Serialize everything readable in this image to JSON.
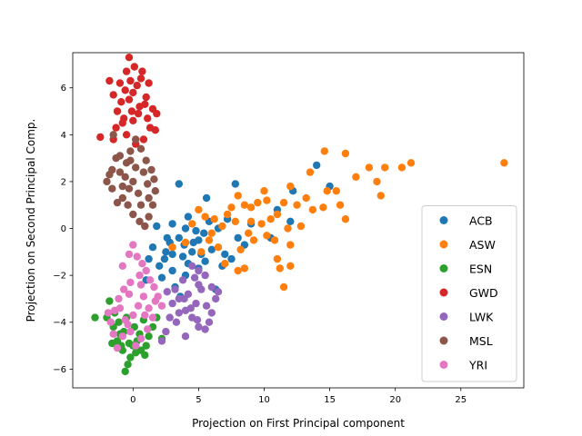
{
  "chart_data": {
    "type": "scatter",
    "title": "",
    "xlabel": "Projection on First Principal component",
    "ylabel": "Projection on Second Principal Comp.",
    "xlim": [
      -4.6,
      29.8
    ],
    "ylim": [
      -6.8,
      7.5
    ],
    "xticks": [
      0,
      5,
      10,
      15,
      20,
      25
    ],
    "yticks": [
      -6,
      -4,
      -2,
      0,
      2,
      4,
      6
    ],
    "grid": false,
    "legend_position": "lower-right",
    "series": [
      {
        "name": "ACB",
        "color": "#1f77b4",
        "points": [
          [
            3.5,
            1.9
          ],
          [
            5.6,
            1.3
          ],
          [
            7.8,
            1.9
          ],
          [
            3.0,
            0.2
          ],
          [
            4.0,
            0.0
          ],
          [
            5.0,
            -0.5
          ],
          [
            6.0,
            -0.9
          ],
          [
            7.0,
            -1.1
          ],
          [
            2.5,
            -1.0
          ],
          [
            1.8,
            0.1
          ],
          [
            1.5,
            -0.8
          ],
          [
            1.2,
            -1.3
          ],
          [
            2.0,
            -1.6
          ],
          [
            3.0,
            -1.8
          ],
          [
            4.0,
            -2.0
          ],
          [
            5.0,
            -1.7
          ],
          [
            6.3,
            -2.6
          ],
          [
            7.5,
            -1.3
          ],
          [
            8.5,
            -0.7
          ],
          [
            9.0,
            0.2
          ],
          [
            3.5,
            -0.4
          ],
          [
            4.5,
            -1.0
          ],
          [
            5.5,
            -1.4
          ],
          [
            2.8,
            -0.6
          ],
          [
            3.8,
            -1.2
          ],
          [
            4.8,
            -0.1
          ],
          [
            5.8,
            0.3
          ],
          [
            6.5,
            0.0
          ],
          [
            7.2,
            0.4
          ],
          [
            8.0,
            -0.4
          ],
          [
            2.2,
            -2.1
          ],
          [
            3.2,
            -2.5
          ],
          [
            4.2,
            -1.5
          ],
          [
            3.0,
            -1.1
          ],
          [
            4.6,
            -0.6
          ],
          [
            5.2,
            -1.1
          ],
          [
            6.8,
            -1.6
          ],
          [
            2.6,
            -0.4
          ],
          [
            1.0,
            -2.2
          ],
          [
            3.6,
            -2.9
          ],
          [
            12.2,
            1.6
          ],
          [
            12.0,
            0.3
          ],
          [
            14.0,
            2.7
          ],
          [
            15.0,
            1.8
          ],
          [
            11.0,
            0.8
          ],
          [
            10.5,
            -0.4
          ],
          [
            4.2,
            0.5
          ],
          [
            3.9,
            -0.7
          ],
          [
            2.4,
            -1.3
          ],
          [
            5.4,
            -0.2
          ]
        ]
      },
      {
        "name": "ASW",
        "color": "#ff7f0e",
        "points": [
          [
            14.6,
            3.3
          ],
          [
            16.2,
            3.2
          ],
          [
            28.3,
            2.8
          ],
          [
            21.2,
            2.8
          ],
          [
            20.5,
            2.6
          ],
          [
            19.2,
            2.6
          ],
          [
            18.0,
            2.6
          ],
          [
            18.6,
            2.0
          ],
          [
            18.9,
            1.4
          ],
          [
            16.2,
            0.4
          ],
          [
            15.8,
            1.0
          ],
          [
            15.5,
            1.6
          ],
          [
            14.5,
            0.9
          ],
          [
            13.7,
            0.8
          ],
          [
            13.2,
            1.3
          ],
          [
            12.8,
            0.1
          ],
          [
            12.0,
            1.8
          ],
          [
            11.5,
            1.1
          ],
          [
            11.0,
            0.6
          ],
          [
            10.5,
            0.4
          ],
          [
            10.0,
            1.6
          ],
          [
            9.5,
            1.1
          ],
          [
            9.0,
            0.9
          ],
          [
            8.5,
            1.0
          ],
          [
            8.0,
            1.4
          ],
          [
            7.5,
            0.9
          ],
          [
            11.5,
            -2.5
          ],
          [
            12.0,
            -1.6
          ],
          [
            11.2,
            -1.7
          ],
          [
            11.0,
            -1.3
          ],
          [
            10.8,
            -0.5
          ],
          [
            12.0,
            -0.7
          ],
          [
            8.5,
            -1.7
          ],
          [
            8.0,
            -1.8
          ],
          [
            7.0,
            -1.5
          ],
          [
            6.5,
            -0.8
          ],
          [
            6.0,
            -0.2
          ],
          [
            5.5,
            0.5
          ],
          [
            5.0,
            0.8
          ],
          [
            4.5,
            0.2
          ],
          [
            7.2,
            0.6
          ],
          [
            9.2,
            -0.5
          ],
          [
            10.2,
            -0.3
          ],
          [
            11.8,
            0.0
          ],
          [
            9.8,
            0.2
          ],
          [
            8.8,
            -0.2
          ],
          [
            7.8,
            0.3
          ],
          [
            6.8,
            0.1
          ],
          [
            5.8,
            -0.5
          ],
          [
            13.5,
            2.4
          ],
          [
            17.0,
            2.2
          ],
          [
            14.8,
            1.6
          ],
          [
            12.5,
            1.0
          ],
          [
            10.2,
            1.2
          ],
          [
            9.0,
            0.3
          ],
          [
            4.0,
            -0.6
          ],
          [
            3.0,
            -0.8
          ],
          [
            5.2,
            -1.0
          ],
          [
            6.2,
            0.4
          ],
          [
            8.2,
            -0.9
          ]
        ]
      },
      {
        "name": "ESN",
        "color": "#2ca02c",
        "points": [
          [
            -2.9,
            -3.8
          ],
          [
            -2.0,
            -3.8
          ],
          [
            -1.8,
            -3.1
          ],
          [
            -1.5,
            -4.2
          ],
          [
            -1.2,
            -4.8
          ],
          [
            -1.0,
            -4.5
          ],
          [
            -0.8,
            -5.2
          ],
          [
            -0.6,
            -6.1
          ],
          [
            -0.4,
            -5.8
          ],
          [
            -0.2,
            -5.5
          ],
          [
            0.0,
            -5.0
          ],
          [
            0.3,
            -4.8
          ],
          [
            0.6,
            -5.2
          ],
          [
            0.9,
            -5.4
          ],
          [
            1.2,
            -4.6
          ],
          [
            1.5,
            -4.2
          ],
          [
            1.8,
            -3.8
          ],
          [
            2.2,
            -4.7
          ],
          [
            -1.4,
            -3.6
          ],
          [
            -1.1,
            -4.0
          ],
          [
            -0.7,
            -4.4
          ],
          [
            -0.3,
            -4.9
          ],
          [
            0.1,
            -4.2
          ],
          [
            0.5,
            -4.5
          ],
          [
            0.8,
            -3.9
          ],
          [
            -1.6,
            -4.9
          ],
          [
            -0.9,
            -5.0
          ],
          [
            -0.5,
            -3.8
          ],
          [
            0.2,
            -5.3
          ],
          [
            1.0,
            -5.0
          ]
        ]
      },
      {
        "name": "GWD",
        "color": "#d62728",
        "points": [
          [
            -0.3,
            7.3
          ],
          [
            -0.5,
            6.7
          ],
          [
            0.1,
            6.9
          ],
          [
            0.7,
            6.7
          ],
          [
            1.2,
            6.2
          ],
          [
            -1.0,
            6.2
          ],
          [
            -1.8,
            6.3
          ],
          [
            -1.5,
            5.7
          ],
          [
            -1.2,
            5.0
          ],
          [
            -0.8,
            4.5
          ],
          [
            -0.5,
            4.0
          ],
          [
            0.0,
            4.6
          ],
          [
            0.5,
            5.2
          ],
          [
            1.0,
            5.6
          ],
          [
            1.5,
            5.1
          ],
          [
            1.8,
            4.9
          ],
          [
            1.3,
            4.3
          ],
          [
            0.8,
            3.8
          ],
          [
            0.2,
            3.6
          ],
          [
            -0.3,
            5.5
          ],
          [
            0.3,
            6.1
          ],
          [
            -0.6,
            5.9
          ],
          [
            0.6,
            6.4
          ],
          [
            -1.3,
            4.3
          ],
          [
            -2.5,
            3.9
          ],
          [
            -1.5,
            3.8
          ],
          [
            1.7,
            4.2
          ],
          [
            -0.1,
            5.0
          ],
          [
            0.4,
            4.9
          ],
          [
            -0.9,
            5.4
          ],
          [
            0.9,
            5.3
          ],
          [
            -0.2,
            6.3
          ],
          [
            1.1,
            4.7
          ],
          [
            -0.7,
            4.7
          ],
          [
            0.0,
            5.8
          ]
        ]
      },
      {
        "name": "LWK",
        "color": "#9467bd",
        "points": [
          [
            4.5,
            -1.6
          ],
          [
            5.0,
            -1.8
          ],
          [
            5.5,
            -2.0
          ],
          [
            6.0,
            -2.5
          ],
          [
            6.3,
            -3.0
          ],
          [
            6.0,
            -3.6
          ],
          [
            5.8,
            -4.0
          ],
          [
            5.5,
            -4.3
          ],
          [
            5.0,
            -4.2
          ],
          [
            4.5,
            -3.8
          ],
          [
            4.0,
            -3.5
          ],
          [
            3.5,
            -3.0
          ],
          [
            3.2,
            -2.6
          ],
          [
            3.0,
            -3.2
          ],
          [
            2.8,
            -3.8
          ],
          [
            2.5,
            -4.4
          ],
          [
            2.2,
            -4.8
          ],
          [
            3.8,
            -2.2
          ],
          [
            4.2,
            -2.8
          ],
          [
            4.8,
            -3.2
          ],
          [
            5.2,
            -2.6
          ],
          [
            4.0,
            -4.6
          ],
          [
            3.5,
            -3.6
          ],
          [
            6.5,
            -2.7
          ],
          [
            5.0,
            -2.4
          ],
          [
            4.4,
            -3.4
          ],
          [
            3.3,
            -4.0
          ],
          [
            2.6,
            -2.7
          ],
          [
            4.7,
            -2.1
          ],
          [
            5.6,
            -3.3
          ],
          [
            3.9,
            -3.0
          ],
          [
            4.9,
            -3.9
          ]
        ]
      },
      {
        "name": "MSL",
        "color": "#8c564b",
        "points": [
          [
            -2.0,
            2.0
          ],
          [
            -1.6,
            2.5
          ],
          [
            -1.3,
            3.0
          ],
          [
            -1.0,
            3.1
          ],
          [
            -0.5,
            2.8
          ],
          [
            -0.2,
            3.3
          ],
          [
            0.2,
            3.8
          ],
          [
            0.6,
            3.4
          ],
          [
            1.0,
            2.9
          ],
          [
            1.4,
            2.5
          ],
          [
            1.6,
            2.1
          ],
          [
            1.7,
            1.6
          ],
          [
            1.5,
            1.0
          ],
          [
            1.2,
            0.5
          ],
          [
            0.9,
            0.1
          ],
          [
            0.5,
            0.3
          ],
          [
            0.0,
            0.6
          ],
          [
            -0.4,
            1.0
          ],
          [
            -0.8,
            1.3
          ],
          [
            -1.2,
            1.1
          ],
          [
            -1.6,
            1.7
          ],
          [
            -1.8,
            2.3
          ],
          [
            -1.5,
            4.0
          ],
          [
            0.0,
            2.0
          ],
          [
            0.4,
            1.5
          ],
          [
            -0.6,
            2.2
          ],
          [
            0.8,
            2.4
          ],
          [
            -0.3,
            1.7
          ],
          [
            1.1,
            1.9
          ],
          [
            0.2,
            2.6
          ],
          [
            -1.0,
            2.4
          ],
          [
            -0.2,
            2.9
          ],
          [
            0.6,
            1.0
          ],
          [
            1.2,
            1.3
          ],
          [
            -0.8,
            1.8
          ]
        ]
      },
      {
        "name": "YRI",
        "color": "#e377c2",
        "points": [
          [
            0.0,
            -0.7
          ],
          [
            -0.3,
            -1.1
          ],
          [
            -0.8,
            -1.6
          ],
          [
            0.3,
            -1.2
          ],
          [
            0.7,
            -1.5
          ],
          [
            1.0,
            -1.8
          ],
          [
            1.3,
            -2.2
          ],
          [
            1.6,
            -2.5
          ],
          [
            1.9,
            -2.9
          ],
          [
            2.2,
            -3.3
          ],
          [
            0.5,
            -2.0
          ],
          [
            -0.2,
            -2.3
          ],
          [
            -0.7,
            -2.6
          ],
          [
            -1.1,
            -3.0
          ],
          [
            -1.4,
            -3.5
          ],
          [
            -1.7,
            -4.0
          ],
          [
            -1.5,
            -4.5
          ],
          [
            -1.2,
            -5.1
          ],
          [
            -0.8,
            -4.6
          ],
          [
            -0.4,
            -4.1
          ],
          [
            0.0,
            -3.7
          ],
          [
            0.4,
            -3.3
          ],
          [
            0.8,
            -2.9
          ],
          [
            1.2,
            -3.4
          ],
          [
            1.5,
            -3.8
          ],
          [
            1.1,
            -4.3
          ],
          [
            0.6,
            -4.7
          ],
          [
            0.2,
            -5.0
          ],
          [
            -0.2,
            -4.4
          ],
          [
            -0.6,
            -3.9
          ],
          [
            -1.0,
            -3.4
          ],
          [
            -0.3,
            -2.8
          ],
          [
            0.6,
            -2.4
          ],
          [
            1.7,
            -3.1
          ],
          [
            -1.9,
            -3.6
          ],
          [
            0.9,
            -3.7
          ]
        ]
      }
    ]
  }
}
